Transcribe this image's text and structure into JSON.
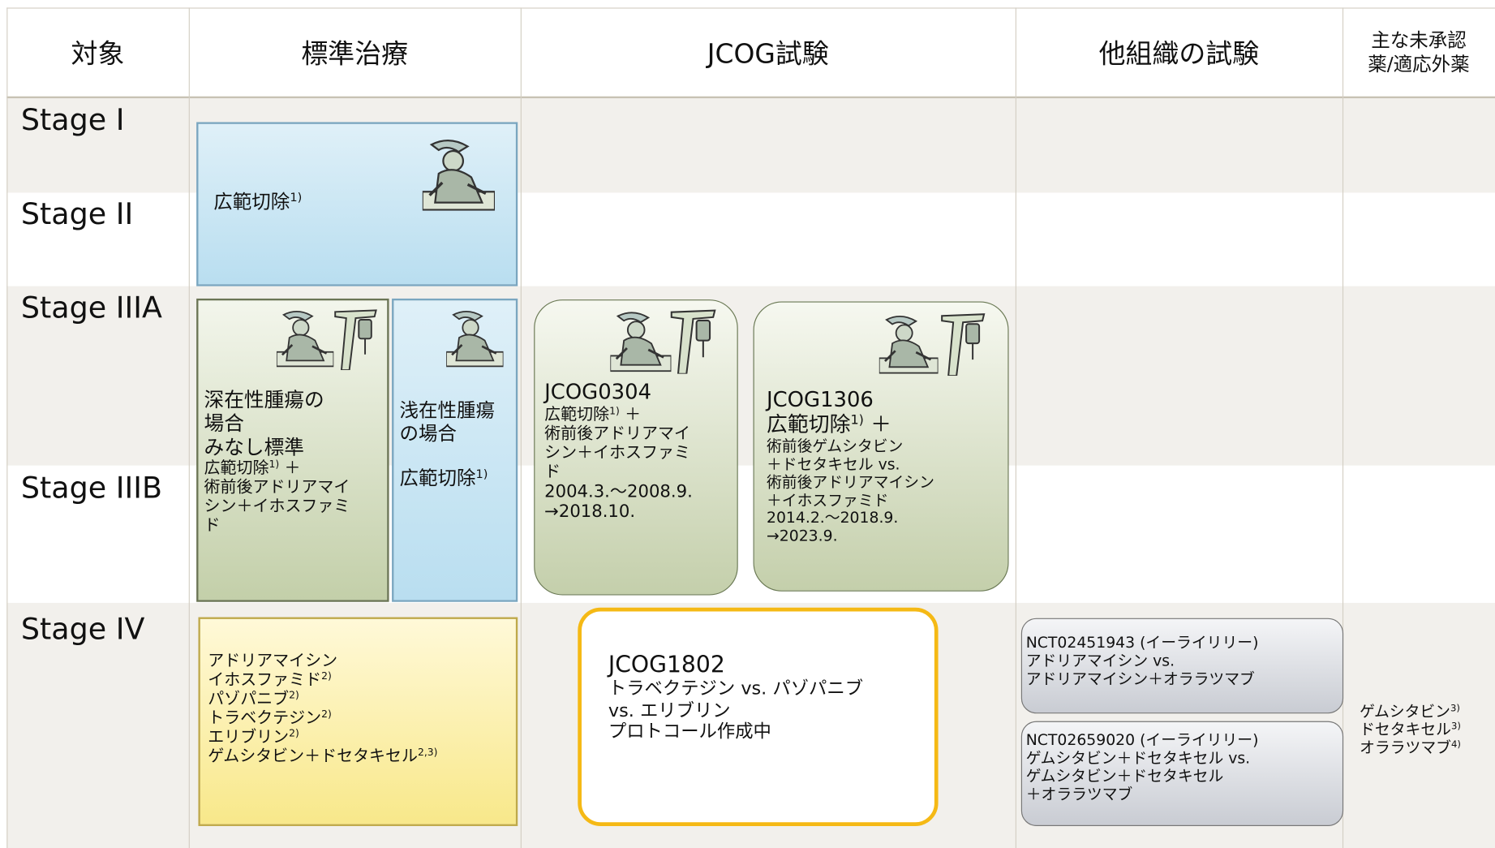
{
  "header": {
    "columns": [
      "対象",
      "標準治療",
      "JCOG試験",
      "他組織の試験"
    ],
    "unapproved": [
      "主な未承認",
      "薬/適応外薬"
    ]
  },
  "stages": [
    "Stage I",
    "Stage II",
    "Stage IIIA",
    "Stage IIIB",
    "Stage IV"
  ],
  "standard_early": {
    "lines": [
      {
        "text": "広範切除",
        "sup": "1)"
      }
    ]
  },
  "standard_deep": {
    "lines": [
      "深在性腫瘍の",
      "場合",
      "みなし標準",
      {
        "text": "広範切除",
        "sup": "1)",
        "after": " ＋"
      },
      "術前後アドリアマイ",
      "シン＋イホスファミ",
      "ド"
    ]
  },
  "standard_superficial": {
    "lines": [
      "浅在性腫瘍",
      "の場合",
      {
        "text": "広範切除",
        "sup": "1)"
      }
    ]
  },
  "jcog0304": {
    "lines": [
      "JCOG0304",
      {
        "text": "広範切除",
        "sup": "1)",
        "after": " ＋"
      },
      "術前後アドリアマイ",
      "シン＋イホスファミ",
      "ド",
      "2004.3.～2008.9.",
      "→2018.10."
    ]
  },
  "jcog1306": {
    "lines": [
      "JCOG1306",
      {
        "text": "広範切除",
        "sup": "1)",
        "after": " ＋"
      },
      "術前後ゲムシタビン",
      "＋ドセタキセル vs.",
      "術前後アドリアマイシン",
      "＋イホスファミド",
      "2014.2.～2018.9.",
      "→2023.9."
    ]
  },
  "standard_stage4": {
    "lines": [
      "アドリアマイシン",
      {
        "text": "イホスファミド",
        "sup": "2)"
      },
      {
        "text": "パゾパニブ",
        "sup": "2)"
      },
      {
        "text": "トラベクテジン",
        "sup": "2)"
      },
      {
        "text": "エリブリン",
        "sup": "2)"
      },
      {
        "text": "ゲムシタビン＋ドセタキセル",
        "sup": "2,3)"
      }
    ]
  },
  "jcog1802": {
    "lines": [
      "JCOG1802",
      "トラベクテジン vs. パゾパニブ",
      "vs. エリブリン",
      "プロトコール作成中"
    ]
  },
  "nct02451943": {
    "lines": [
      "NCT02451943 (イーライリリー)",
      "アドリアマイシン vs.",
      "アドリアマイシン＋オララツマブ"
    ]
  },
  "nct02659020": {
    "lines": [
      "NCT02659020 (イーライリリー)",
      "ゲムシタビン＋ドセタキセル vs.",
      "ゲムシタビン＋ドセタキセル",
      "＋オララツマブ"
    ]
  },
  "unapproved_drugs": {
    "lines": [
      {
        "text": "ゲムシタビン",
        "sup": "3)"
      },
      {
        "text": "ドセタキセル",
        "sup": "3)"
      },
      {
        "text": "オララツマブ",
        "sup": "4)"
      }
    ]
  }
}
